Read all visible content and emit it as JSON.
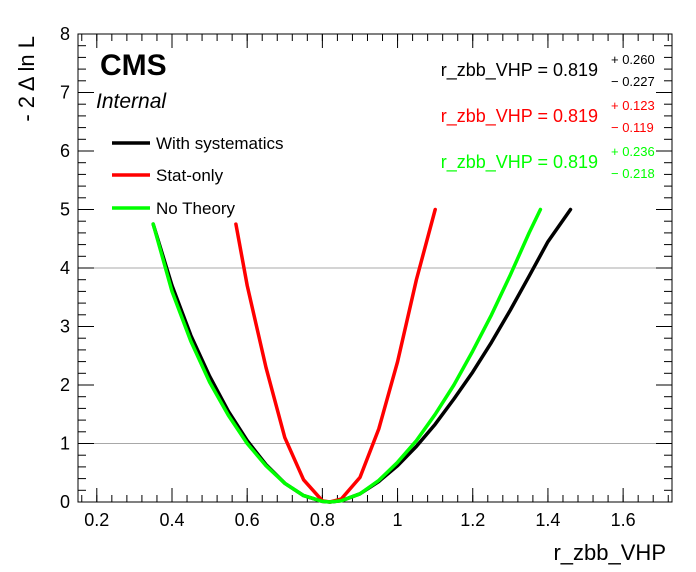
{
  "chart_data": {
    "type": "line",
    "title": "",
    "xlabel": "r_zbb_VHP",
    "ylabel": "- 2 Δ ln L",
    "xlim": [
      0.15,
      1.73
    ],
    "ylim": [
      0,
      8
    ],
    "xticks": [
      "0.2",
      "0.4",
      "0.6",
      "0.8",
      "1",
      "1.2",
      "1.4",
      "1.6"
    ],
    "xtick_values": [
      0.2,
      0.4,
      0.6,
      0.8,
      1.0,
      1.2,
      1.4,
      1.6
    ],
    "yticks": [
      "0",
      "1",
      "2",
      "3",
      "4",
      "5",
      "6",
      "7",
      "8"
    ],
    "ytick_values": [
      0,
      1,
      2,
      3,
      4,
      5,
      6,
      7,
      8
    ],
    "reference_lines_y": [
      1,
      4
    ],
    "grid": false,
    "legend_position": "top-left",
    "labels": {
      "experiment": "CMS",
      "status": "Internal"
    },
    "series": [
      {
        "name": "With systematics",
        "color": "#000000",
        "best_fit": 0.819,
        "err_up": 0.26,
        "err_down": 0.227,
        "x": [
          0.35,
          0.4,
          0.45,
          0.5,
          0.55,
          0.6,
          0.65,
          0.7,
          0.75,
          0.8,
          0.82,
          0.85,
          0.9,
          0.95,
          1.0,
          1.05,
          1.1,
          1.15,
          1.2,
          1.25,
          1.3,
          1.35,
          1.4,
          1.46
        ],
        "y": [
          4.75,
          3.7,
          2.85,
          2.15,
          1.55,
          1.05,
          0.64,
          0.32,
          0.11,
          0.01,
          0.0,
          0.02,
          0.14,
          0.35,
          0.62,
          0.95,
          1.33,
          1.76,
          2.22,
          2.73,
          3.28,
          3.86,
          4.45,
          5.0
        ]
      },
      {
        "name": "Stat-only",
        "color": "#ff0000",
        "best_fit": 0.819,
        "err_up": 0.123,
        "err_down": 0.119,
        "x": [
          0.57,
          0.6,
          0.65,
          0.7,
          0.75,
          0.8,
          0.82,
          0.85,
          0.9,
          0.95,
          1.0,
          1.05,
          1.1
        ],
        "y": [
          4.75,
          3.7,
          2.3,
          1.1,
          0.38,
          0.02,
          0.0,
          0.05,
          0.42,
          1.25,
          2.4,
          3.8,
          5.0
        ]
      },
      {
        "name": "No Theory",
        "color": "#00ff00",
        "best_fit": 0.819,
        "err_up": 0.236,
        "err_down": 0.218,
        "x": [
          0.35,
          0.4,
          0.45,
          0.5,
          0.55,
          0.6,
          0.65,
          0.7,
          0.75,
          0.8,
          0.82,
          0.85,
          0.9,
          0.95,
          1.0,
          1.05,
          1.1,
          1.15,
          1.2,
          1.25,
          1.3,
          1.35,
          1.38
        ],
        "y": [
          4.75,
          3.6,
          2.75,
          2.05,
          1.48,
          1.0,
          0.62,
          0.32,
          0.11,
          0.01,
          0.0,
          0.02,
          0.14,
          0.37,
          0.68,
          1.05,
          1.5,
          2.0,
          2.58,
          3.2,
          3.88,
          4.6,
          5.0
        ]
      }
    ]
  },
  "results": [
    {
      "label": "r_zbb_VHP = 0.819",
      "up": "+ 0.260",
      "down": "− 0.227",
      "color": "#000000"
    },
    {
      "label": "r_zbb_VHP = 0.819",
      "up": "+ 0.123",
      "down": "− 0.119",
      "color": "#ff0000"
    },
    {
      "label": "r_zbb_VHP = 0.819",
      "up": "+ 0.236",
      "down": "− 0.218",
      "color": "#00ff00"
    }
  ]
}
